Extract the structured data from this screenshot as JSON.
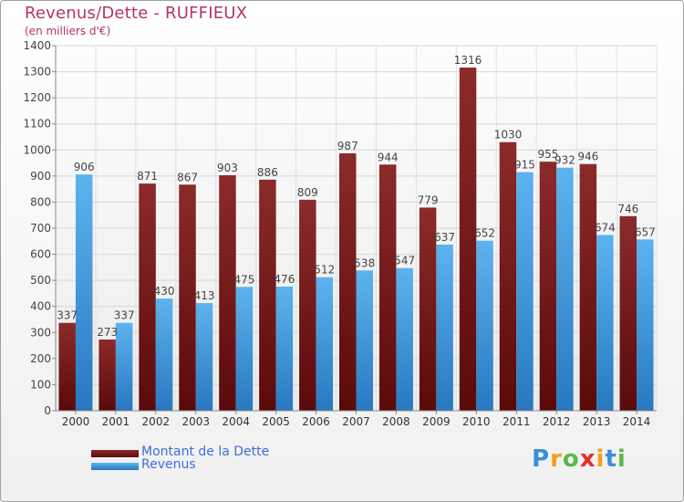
{
  "title": "Revenus/Dette - RUFFIEUX",
  "subtitle": "(en milliers d'€)",
  "logo": {
    "letters": [
      {
        "ch": "P",
        "color": "#3b8fd8"
      },
      {
        "ch": "r",
        "color": "#f0a020"
      },
      {
        "ch": "o",
        "color": "#5bb84a"
      },
      {
        "ch": "x",
        "color": "#e0302a"
      },
      {
        "ch": "i",
        "color": "#f0a020"
      },
      {
        "ch": "t",
        "color": "#3b8fd8"
      },
      {
        "ch": "i",
        "color": "#5bb84a"
      }
    ]
  },
  "chart_data": {
    "type": "bar",
    "categories": [
      "2000",
      "2001",
      "2002",
      "2003",
      "2004",
      "2005",
      "2006",
      "2007",
      "2008",
      "2009",
      "2010",
      "2011",
      "2012",
      "2013",
      "2014"
    ],
    "series": [
      {
        "name": "Montant de la Dette",
        "color": "#7a1a1a",
        "values": [
          337,
          273,
          871,
          867,
          903,
          886,
          809,
          987,
          944,
          779,
          1316,
          1030,
          955,
          946,
          746
        ]
      },
      {
        "name": "Revenus",
        "color": "#3d96d9",
        "values": [
          906,
          337,
          430,
          413,
          475,
          476,
          512,
          538,
          547,
          637,
          652,
          915,
          932,
          674,
          657
        ]
      }
    ],
    "ylim": [
      0,
      1400
    ],
    "yticks": [
      0,
      100,
      200,
      300,
      400,
      500,
      600,
      700,
      800,
      900,
      1000,
      1100,
      1200,
      1300,
      1400
    ],
    "grid": true,
    "legend_position": "bottom-left"
  }
}
